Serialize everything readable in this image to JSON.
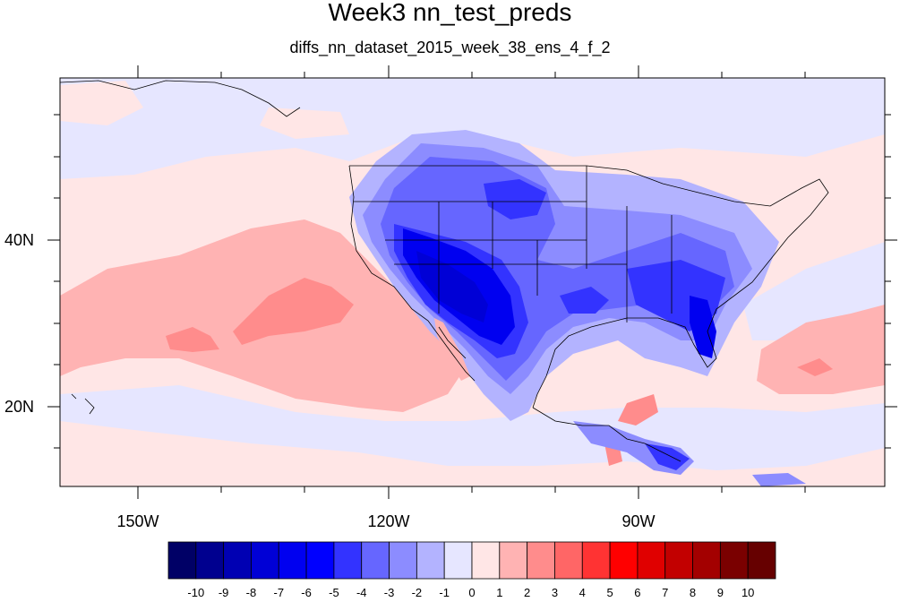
{
  "title": "Week3 nn_test_preds",
  "subtitle": "diffs_nn_dataset_2015_week_38_ens_4_f_2",
  "longitude_labels": [
    "150W",
    "120W",
    "90W"
  ],
  "latitude_labels": [
    "40N",
    "20N"
  ],
  "colorbar": {
    "labels": [
      "-10",
      "-9",
      "-8",
      "-7",
      "-6",
      "-5",
      "-4",
      "-3",
      "-2",
      "-1",
      "0",
      "1",
      "2",
      "3",
      "4",
      "5",
      "6",
      "7",
      "8",
      "9",
      "10"
    ],
    "colors": [
      "#000066",
      "#00008f",
      "#0000b3",
      "#0000d6",
      "#0000f0",
      "#0000ff",
      "#3333ff",
      "#6666ff",
      "#8c8cff",
      "#b3b3ff",
      "#e6e6ff",
      "#ffe6e6",
      "#ffb3b3",
      "#ff8c8c",
      "#ff6666",
      "#ff3333",
      "#ff0000",
      "#e00000",
      "#c20000",
      "#a30000",
      "#7a0000",
      "#660000"
    ]
  },
  "map_regions": {
    "ocean_background": "#ffe6e6",
    "colors": {
      "very_light_blue": "#e6e6ff",
      "light_blue": "#b3b3ff",
      "mid_blue": "#8c8cff",
      "blue": "#6666ff",
      "strong_blue": "#3333ff",
      "deep_blue": "#0000f0",
      "darkest_blue": "#0000d6",
      "light_red": "#ffb3b3",
      "mid_red": "#ff8c8c",
      "red": "#ff6666"
    }
  }
}
